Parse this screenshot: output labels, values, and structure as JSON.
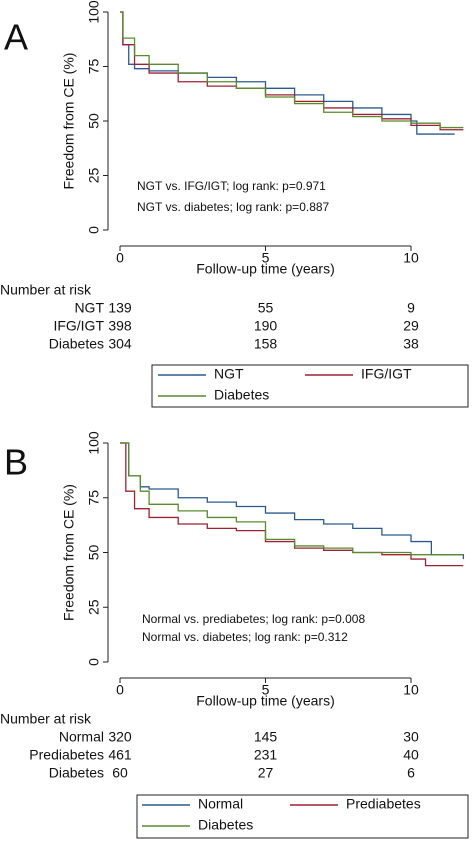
{
  "chart_data": [
    {
      "type": "line",
      "step": true,
      "panel": "A",
      "xlabel": "Follow-up time (years)",
      "ylabel": "Freedom from CE (%)",
      "xlim": [
        0,
        12
      ],
      "ylim": [
        0,
        100
      ],
      "xticks": [
        0,
        5,
        10
      ],
      "yticks": [
        0,
        25,
        50,
        75,
        100
      ],
      "annotations": [
        "NGT vs. IFG/IGT; log rank: p=0.971",
        "NGT vs. diabetes; log rank: p=0.887"
      ],
      "series": [
        {
          "name": "NGT",
          "color": "#2b5a8e",
          "x": [
            0,
            0.1,
            0.3,
            0.5,
            1,
            2,
            3,
            4,
            5,
            6,
            7,
            8,
            9,
            10,
            10.2,
            11.5
          ],
          "values": [
            100,
            85,
            76,
            74,
            73,
            72,
            70,
            68,
            65,
            62,
            59,
            56,
            53,
            50,
            44,
            44
          ]
        },
        {
          "name": "IFG/IGT",
          "color": "#9b2335",
          "x": [
            0,
            0.1,
            0.5,
            1,
            2,
            3,
            4,
            5,
            6,
            7,
            8,
            9,
            10,
            11,
            11.8
          ],
          "values": [
            100,
            85,
            76,
            72,
            68,
            66,
            65,
            62,
            59,
            56,
            53,
            51,
            48,
            46,
            46
          ]
        },
        {
          "name": "Diabetes",
          "color": "#5a8a2e",
          "x": [
            0,
            0.1,
            0.5,
            1,
            2,
            3,
            4,
            5,
            6,
            7,
            8,
            9,
            10,
            11,
            11.8
          ],
          "values": [
            100,
            88,
            80,
            76,
            72,
            68,
            65,
            61,
            58,
            54,
            52,
            50,
            49,
            47,
            47
          ]
        }
      ],
      "risk_table": {
        "title": "Number at risk",
        "rows": [
          {
            "label": "NGT",
            "values": [
              139,
              55,
              9
            ]
          },
          {
            "label": "IFG/IGT",
            "values": [
              398,
              190,
              29
            ]
          },
          {
            "label": "Diabetes",
            "values": [
              304,
              158,
              38
            ]
          }
        ]
      }
    },
    {
      "type": "line",
      "step": true,
      "panel": "B",
      "xlabel": "Follow-up time (years)",
      "ylabel": "Freedom from CE (%)",
      "xlim": [
        0,
        12
      ],
      "ylim": [
        0,
        100
      ],
      "xticks": [
        0,
        5,
        10
      ],
      "yticks": [
        0,
        25,
        50,
        75,
        100
      ],
      "annotations": [
        "Normal vs. prediabetes; log rank: p=0.008",
        "Normal vs. diabetes; log rank: p=0.312"
      ],
      "series": [
        {
          "name": "Normal",
          "color": "#2b5a8e",
          "x": [
            0,
            0.3,
            0.7,
            1,
            2,
            3,
            4,
            5,
            6,
            7,
            8,
            9,
            10,
            10.7,
            11.8
          ],
          "values": [
            100,
            85,
            80,
            79,
            75,
            73,
            71,
            68,
            65,
            63,
            61,
            58,
            55,
            49,
            47
          ]
        },
        {
          "name": "Prediabetes",
          "color": "#9b2335",
          "x": [
            0,
            0.2,
            0.5,
            1,
            2,
            3,
            4,
            5,
            6,
            7,
            8,
            9,
            10,
            10.5,
            11.8
          ],
          "values": [
            100,
            78,
            70,
            66,
            63,
            61,
            60,
            55,
            52,
            51,
            50,
            49,
            47,
            44,
            44
          ]
        },
        {
          "name": "Diabetes",
          "color": "#5a8a2e",
          "x": [
            0,
            0.3,
            0.7,
            1,
            2,
            3,
            4,
            5,
            6,
            7,
            8,
            9,
            10,
            11,
            11.8
          ],
          "values": [
            100,
            85,
            78,
            72,
            69,
            66,
            64,
            56,
            53,
            52,
            50,
            50,
            49,
            49,
            49
          ]
        }
      ],
      "risk_table": {
        "title": "Number at risk",
        "rows": [
          {
            "label": "Normal",
            "values": [
              320,
              145,
              30
            ]
          },
          {
            "label": "Prediabetes",
            "values": [
              461,
              231,
              40
            ]
          },
          {
            "label": "Diabetes",
            "values": [
              60,
              27,
              6
            ]
          }
        ]
      }
    }
  ]
}
